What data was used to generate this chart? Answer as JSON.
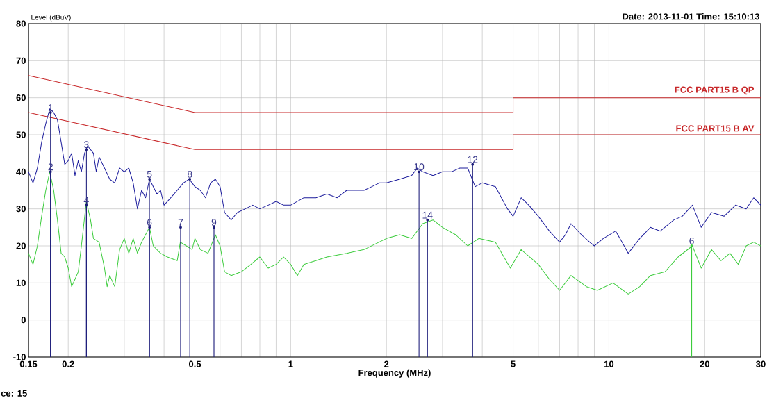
{
  "chart_data": {
    "type": "line",
    "xlabel": "Frequency (MHz)",
    "ylabel": "Level (dBuV)",
    "log": "x",
    "grid": true,
    "xlim": [
      0.15,
      30
    ],
    "ylim": [
      -10,
      80
    ],
    "xticks": [
      0.15,
      0.2,
      {
        "value": 0.3,
        "label": null
      },
      {
        "value": 0.4,
        "label": null
      },
      0.5,
      {
        "value": 0.6,
        "label": null
      },
      {
        "value": 0.7,
        "label": null
      },
      {
        "value": 0.8,
        "label": null
      },
      {
        "value": 0.9,
        "label": null
      },
      1,
      2,
      {
        "value": 3,
        "label": null
      },
      {
        "value": 4,
        "label": null
      },
      5,
      {
        "value": 6,
        "label": null
      },
      {
        "value": 7,
        "label": null
      },
      {
        "value": 8,
        "label": null
      },
      {
        "value": 9,
        "label": null
      },
      10,
      20,
      30
    ],
    "yticks": [
      -10,
      0,
      10,
      20,
      30,
      40,
      50,
      60,
      70,
      80
    ],
    "series": [
      {
        "color": "#1c1c9c",
        "x": [
          0.15,
          0.155,
          0.16,
          0.165,
          0.17,
          0.175,
          0.18,
          0.185,
          0.19,
          0.195,
          0.2,
          0.205,
          0.21,
          0.215,
          0.22,
          0.225,
          0.23,
          0.24,
          0.245,
          0.25,
          0.26,
          0.27,
          0.28,
          0.29,
          0.3,
          0.31,
          0.32,
          0.33,
          0.34,
          0.35,
          0.36,
          0.37,
          0.38,
          0.39,
          0.4,
          0.42,
          0.44,
          0.46,
          0.48,
          0.5,
          0.52,
          0.54,
          0.56,
          0.58,
          0.6,
          0.62,
          0.65,
          0.68,
          0.72,
          0.76,
          0.8,
          0.85,
          0.9,
          0.95,
          1.0,
          1.1,
          1.2,
          1.3,
          1.4,
          1.5,
          1.6,
          1.7,
          1.8,
          1.9,
          2.0,
          2.2,
          2.4,
          2.5,
          2.6,
          2.8,
          3.0,
          3.2,
          3.4,
          3.6,
          3.8,
          4.0,
          4.4,
          4.8,
          5.0,
          5.3,
          5.6,
          6.0,
          6.5,
          7.0,
          7.3,
          7.6,
          8.2,
          8.7,
          9.0,
          9.6,
          10.5,
          11,
          11.5,
          12.5,
          13.5,
          14.5,
          16,
          17,
          18.3,
          19.5,
          21,
          23,
          25,
          27,
          28.5,
          30
        ],
        "values": [
          40,
          37,
          41,
          48,
          53,
          57,
          56,
          54,
          48,
          42,
          43,
          45,
          39,
          43,
          40,
          45,
          47,
          45,
          40,
          44,
          41,
          38,
          37,
          41,
          40,
          41,
          37,
          30,
          35,
          33,
          38,
          36,
          34,
          35,
          31,
          33,
          35,
          37,
          38,
          36,
          35,
          33,
          37,
          38,
          36,
          29,
          27,
          29,
          30,
          31,
          30,
          31,
          32,
          31,
          31,
          33,
          33,
          34,
          33,
          35,
          35,
          35,
          36,
          37,
          37,
          38,
          39,
          41,
          40,
          39,
          40,
          40,
          41,
          41,
          36,
          37,
          36,
          30,
          28,
          33,
          31,
          28,
          24,
          21,
          23,
          26,
          23,
          21,
          20,
          22,
          24,
          21,
          18,
          22,
          25,
          24,
          27,
          28,
          31,
          25,
          29,
          28,
          31,
          30,
          33,
          31
        ]
      },
      {
        "color": "#3ccc3c",
        "x": [
          0.15,
          0.155,
          0.16,
          0.165,
          0.17,
          0.175,
          0.18,
          0.185,
          0.19,
          0.195,
          0.2,
          0.205,
          0.21,
          0.215,
          0.22,
          0.228,
          0.235,
          0.24,
          0.25,
          0.26,
          0.265,
          0.27,
          0.28,
          0.29,
          0.3,
          0.31,
          0.32,
          0.33,
          0.34,
          0.36,
          0.37,
          0.39,
          0.41,
          0.44,
          0.45,
          0.47,
          0.49,
          0.5,
          0.52,
          0.55,
          0.58,
          0.6,
          0.62,
          0.65,
          0.7,
          0.75,
          0.8,
          0.85,
          0.9,
          0.95,
          1.0,
          1.05,
          1.1,
          1.2,
          1.3,
          1.5,
          1.7,
          2.0,
          2.2,
          2.4,
          2.6,
          2.8,
          3.0,
          3.3,
          3.6,
          3.9,
          4.4,
          4.9,
          5.3,
          6.0,
          6.5,
          7.0,
          7.6,
          8.5,
          9.2,
          10.3,
          11.5,
          12.5,
          13.5,
          15,
          16.5,
          18.3,
          19.5,
          21,
          22.5,
          24,
          25.5,
          27,
          28.5,
          30
        ],
        "values": [
          18,
          15,
          20,
          28,
          35,
          40,
          35,
          27,
          18,
          17,
          14,
          9,
          11,
          13,
          20,
          32,
          27,
          22,
          21,
          14,
          9,
          12,
          9,
          19,
          22,
          18,
          22,
          18,
          21,
          25,
          20,
          18,
          17,
          16,
          21,
          20,
          19,
          22,
          19,
          18,
          23,
          20,
          13,
          12,
          13,
          15,
          17,
          14,
          15,
          17,
          15,
          12,
          15,
          16,
          17,
          18,
          19,
          22,
          23,
          22,
          26,
          27,
          25,
          23,
          20,
          22,
          21,
          14,
          19,
          15,
          11,
          8,
          12,
          9,
          8,
          10,
          7,
          9,
          12,
          13,
          17,
          20,
          14,
          19,
          16,
          18,
          15,
          20,
          21,
          20
        ]
      },
      {
        "name": "FCC PART15 B QP",
        "color": "#c8282a",
        "x": [
          0.15,
          0.5,
          5,
          5,
          30
        ],
        "values": [
          66,
          56,
          56,
          60,
          60
        ]
      },
      {
        "name": "FCC PART15 B  AV",
        "color": "#c8282a",
        "x": [
          0.15,
          0.5,
          5,
          5,
          30
        ],
        "values": [
          56,
          46,
          46,
          50,
          50
        ]
      },
      {
        "type": "lollipop",
        "x": [
          0.176,
          0.176,
          0.228,
          0.228,
          0.36,
          0.36,
          0.451,
          0.482,
          0.574,
          2.53,
          3.73,
          2.69,
          18.2
        ],
        "values": [
          56,
          40,
          46,
          31,
          38,
          25,
          25,
          38,
          25,
          40,
          42,
          27,
          20
        ],
        "colors": [
          "#1c1c7a",
          "#1c1c7a",
          "#1c1c7a",
          "#1c1c7a",
          "#1c1c7a",
          "#1c1c7a",
          "#1c1c7a",
          "#1c1c7a",
          "#1c1c7a",
          "#1c1c7a",
          "#1c1c7a",
          "#1c1c7a",
          "#3ccc3c"
        ]
      }
    ],
    "annotations": [
      "Date: 2013-11-01  Time: 15:10:13",
      "ce: 15",
      {
        "text": "1",
        "x": 0.176,
        "y": 56
      },
      {
        "text": "2",
        "x": 0.176,
        "y": 40
      },
      {
        "text": "3",
        "x": 0.228,
        "y": 46
      },
      {
        "text": "4",
        "x": 0.228,
        "y": 31
      },
      {
        "text": "5",
        "x": 0.36,
        "y": 38
      },
      {
        "text": "6",
        "x": 0.36,
        "y": 25
      },
      {
        "text": "7",
        "x": 0.451,
        "y": 25
      },
      {
        "text": "8",
        "x": 0.482,
        "y": 38
      },
      {
        "text": "9",
        "x": 0.574,
        "y": 25
      },
      {
        "text": "10",
        "x": 2.53,
        "y": 40
      },
      {
        "text": "12",
        "x": 3.73,
        "y": 42
      },
      {
        "text": "14",
        "x": 2.69,
        "y": 27
      },
      {
        "text": "6",
        "x": 18.2,
        "y": 20
      }
    ]
  }
}
